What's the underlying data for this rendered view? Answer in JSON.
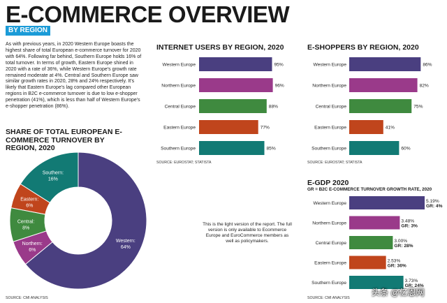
{
  "header": {
    "title": "E-COMMERCE OVERVIEW",
    "subtitle": "BY REGION"
  },
  "intro_text": "As with previous years, in 2020 Western Europe boasts the highest share of total European e-commerce turnover for 2020 with 64%. Following far behind, Southern Europe holds 16% of total turnover. In terms of growth, Eastern Europe shined in 2020 with a rate of 36%, while Western Europe's growth rate remained moderate at 4%. Central and Southern Europe saw similar growth rates in 2020, 28% and 24% respectively. It's likely that Eastern Europe's lag compared other European regions in B2C e-commerce turnover is due to low e-shopper penetration (41%), which is less than half of Western Europe's e-shopper penetration (86%).",
  "colors": {
    "western": "#4a3f80",
    "northern": "#9a3a8a",
    "central": "#3f8a3f",
    "eastern": "#c0451c",
    "southern": "#127a74",
    "accent": "#1b9bd7"
  },
  "light_note": "This is the light version of the report. The full version is only available to Ecommerce Europe and EuroCommerce members as well as policymakers.",
  "watermark": "头条 @亿恩网",
  "chart_data": [
    {
      "id": "share",
      "type": "pie",
      "title": "SHARE OF TOTAL EUROPEAN E-COMMERCE TURNOVER BY REGION, 2020",
      "source": "SOURCE: CMI ANALYSIS",
      "slices": [
        {
          "name": "Western",
          "value": 64,
          "label": "64%",
          "color": "#4a3f80"
        },
        {
          "name": "Northern",
          "value": 6,
          "label": "6%",
          "color": "#9a3a8a"
        },
        {
          "name": "Central",
          "value": 8,
          "label": "8%",
          "color": "#3f8a3f"
        },
        {
          "name": "Eastern",
          "value": 6,
          "label": "6%",
          "color": "#c0451c"
        },
        {
          "name": "Southern",
          "value": 16,
          "label": "16%",
          "color": "#127a74"
        }
      ]
    },
    {
      "id": "users",
      "type": "bar",
      "title": "INTERNET USERS BY REGION, 2020",
      "source": "SOURCE: EUROSTAT; STATISTA",
      "categories": [
        "Western Europe",
        "Northern Europe",
        "Central Europe",
        "Eastern Europe",
        "Southern Europe"
      ],
      "values": [
        95,
        96,
        88,
        77,
        85
      ],
      "labels": [
        "95%",
        "96%",
        "88%",
        "77%",
        "85%"
      ],
      "colors": [
        "#4a3f80",
        "#9a3a8a",
        "#3f8a3f",
        "#c0451c",
        "#127a74"
      ],
      "xlim": [
        0,
        100
      ]
    },
    {
      "id": "shoppers",
      "type": "bar",
      "title": "E-SHOPPERS BY REGION, 2020",
      "source": "SOURCE: EUROSTAT; STATISTA",
      "categories": [
        "Western Europe",
        "Northern Europe",
        "Central Europe",
        "Eastern Europe",
        "Southern Europe"
      ],
      "values": [
        86,
        82,
        75,
        41,
        60
      ],
      "labels": [
        "86%",
        "82%",
        "75%",
        "41%",
        "60%"
      ],
      "colors": [
        "#4a3f80",
        "#9a3a8a",
        "#3f8a3f",
        "#c0451c",
        "#127a74"
      ],
      "xlim": [
        0,
        100
      ]
    },
    {
      "id": "egdp",
      "type": "bar",
      "title": "E-GDP 2020",
      "note": "GR = B2C E-COMMERCE TURNOVER GROWTH RATE, 2020",
      "source": "SOURCE: CMI ANALYSIS",
      "categories": [
        "Western Europe",
        "Northern Europe",
        "Central Europe",
        "Eastern Europe",
        "Southern Europe"
      ],
      "values": [
        5.19,
        3.48,
        3.0,
        2.53,
        3.73
      ],
      "labels": [
        "5.19%",
        "3.48%",
        "3.00%",
        "2.53%",
        "3.73%"
      ],
      "growth_labels": [
        "GR: 4%",
        "GR: 3%",
        "GR: 28%",
        "GR: 36%",
        "GR: 24%"
      ],
      "colors": [
        "#4a3f80",
        "#9a3a8a",
        "#3f8a3f",
        "#c0451c",
        "#127a74"
      ],
      "xlim": [
        0,
        5.19
      ]
    }
  ]
}
